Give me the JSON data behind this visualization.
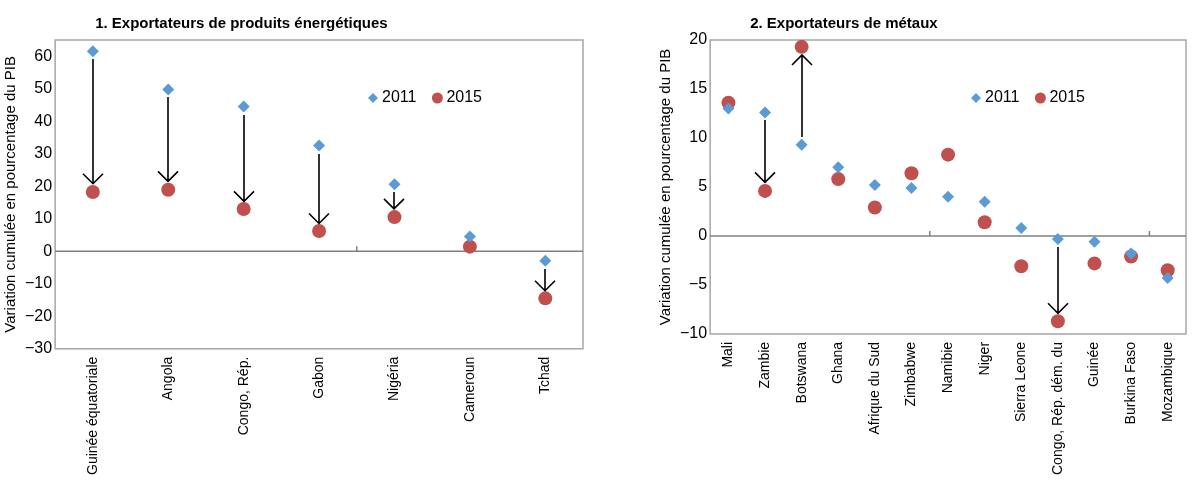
{
  "chart_data": [
    {
      "type": "scatter",
      "title": "1. Exportateurs de produits énergétiques",
      "ylabel": "Variation cumulée en pourcentage du PIB",
      "categories": [
        "Guinée équatoriale",
        "Angola",
        "Congo, Rép.",
        "Gabon",
        "Nigéria",
        "Cameroun",
        "Tchad"
      ],
      "series": [
        {
          "name": "2011",
          "color": "#5b9bd5",
          "marker": "diamond",
          "values": [
            61.5,
            49.8,
            44.5,
            32.5,
            20.6,
            4.5,
            -2.9
          ]
        },
        {
          "name": "2015",
          "color": "#c0504d",
          "marker": "circle",
          "values": [
            18.2,
            18.9,
            13.0,
            6.2,
            10.5,
            1.4,
            -14.5
          ]
        }
      ],
      "ylim": [
        -30,
        65
      ],
      "yticks": [
        -30,
        -20,
        -10,
        0,
        10,
        20,
        30,
        40,
        50,
        60
      ],
      "legend": "top right"
    },
    {
      "type": "scatter",
      "title": "2. Exportateurs de métaux",
      "ylabel": "Variation cumulée en pourcentage du PIB",
      "categories": [
        "Mali",
        "Zambie",
        "Botswana",
        "Ghana",
        "Afrique du Sud",
        "Zimbabwe",
        "Namibie",
        "Niger",
        "Sierra Leone",
        "Congo, Rép. dém. du",
        "Guinée",
        "Burkina Faso",
        "Mozambique"
      ],
      "series": [
        {
          "name": "2011",
          "color": "#5b9bd5",
          "marker": "diamond",
          "values": [
            13.0,
            12.6,
            9.3,
            7.0,
            5.2,
            4.9,
            4.0,
            3.5,
            0.8,
            -0.3,
            -0.6,
            -1.8,
            -4.3
          ]
        },
        {
          "name": "2015",
          "color": "#c0504d",
          "marker": "circle",
          "values": [
            13.6,
            4.6,
            19.3,
            5.8,
            2.9,
            6.4,
            8.3,
            1.4,
            -3.1,
            -8.7,
            -2.8,
            -2.1,
            -3.5
          ]
        }
      ],
      "ylim": [
        -10,
        20
      ],
      "yticks": [
        -10,
        -5,
        0,
        5,
        10,
        15,
        20
      ],
      "legend": "top right"
    }
  ]
}
